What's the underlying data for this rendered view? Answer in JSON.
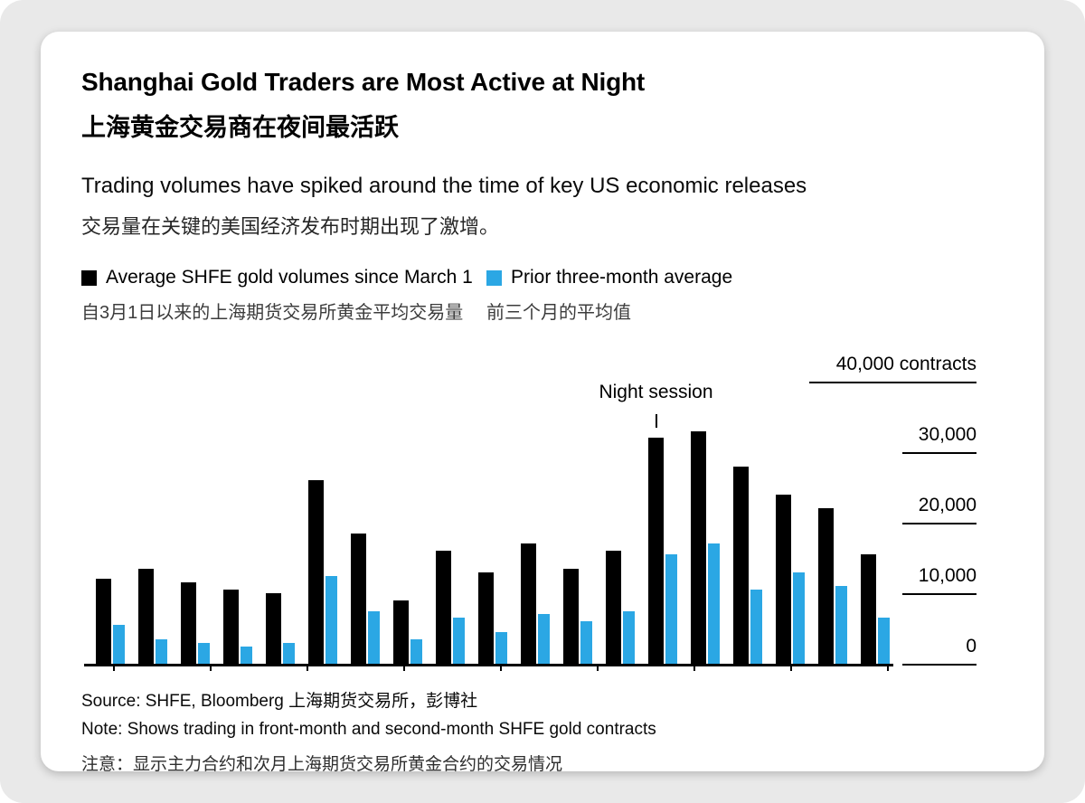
{
  "card": {
    "title_en": "Shanghai Gold Traders are Most Active at Night",
    "title_zh": "上海黄金交易商在夜间最活跃",
    "subtitle_en": "Trading volumes have spiked around the time of key US economic releases",
    "subtitle_zh": "交易量在关键的美国经济发布时期出现了激增。",
    "source_line": "Source: SHFE, Bloomberg 上海期货交易所，彭博社",
    "note_en": "Note: Shows trading in front-month and second-month SHFE gold contracts",
    "note_zh": "注意：显示主力合约和次月上海期货交易所黄金合约的交易情况"
  },
  "chart_data": {
    "type": "bar",
    "title": "Shanghai Gold Traders are Most Active at Night",
    "xlabel": "",
    "ylabel": "contracts",
    "ylim": [
      0,
      40000
    ],
    "grid": "right-axis-tick-underlines",
    "legend_position": "top",
    "y_ticks": [
      {
        "label": "40,000 contracts",
        "value": 40000
      },
      {
        "label": "30,000",
        "value": 30000
      },
      {
        "label": "20,000",
        "value": 20000
      },
      {
        "label": "10,000",
        "value": 10000
      },
      {
        "label": "0",
        "value": 0
      }
    ],
    "annotation": {
      "label": "Night session",
      "bar_index": 13
    },
    "series": [
      {
        "name": "Average SHFE gold volumes since March 1",
        "name_zh": "自3月1日以来的上海期货交易所黄金平均交易量",
        "color": "#000000",
        "values": [
          12000,
          13500,
          11500,
          10500,
          10000,
          26000,
          18500,
          9000,
          16000,
          13000,
          17000,
          13500,
          16000,
          32000,
          33000,
          28000,
          24000,
          22000,
          15500
        ]
      },
      {
        "name": "Prior three-month average",
        "name_zh": "前三个月的平均值",
        "color": "#2ba7e4",
        "values": [
          5500,
          3500,
          3000,
          2500,
          3000,
          12500,
          7500,
          3500,
          6500,
          4500,
          7000,
          6000,
          7500,
          15500,
          17000,
          10500,
          13000,
          11000,
          6500
        ]
      }
    ]
  }
}
